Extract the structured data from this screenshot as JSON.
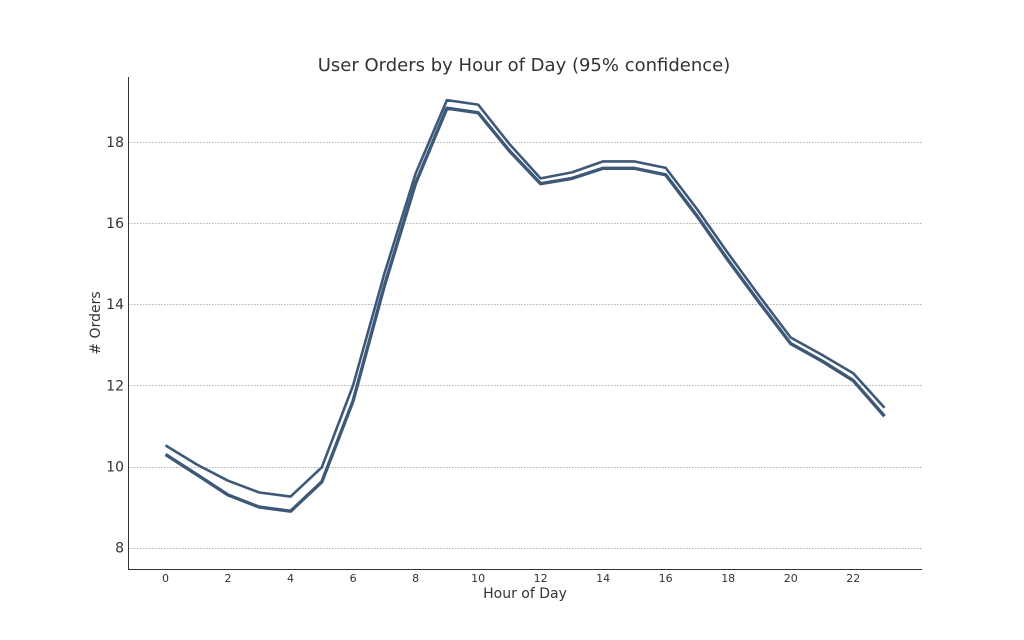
{
  "chart_data": {
    "type": "line",
    "title": "User Orders by Hour of Day (95% confidence)",
    "xlabel": "Hour of Day",
    "ylabel": "# Orders",
    "xlim": [
      -1.2,
      24.2
    ],
    "ylim": [
      7.45,
      19.6
    ],
    "xticks": [
      0,
      2,
      4,
      6,
      8,
      10,
      12,
      14,
      16,
      18,
      20,
      22
    ],
    "yticks": [
      8,
      10,
      12,
      14,
      16,
      18
    ],
    "grid": "y",
    "line_color": "#3e5878",
    "x": [
      0,
      1,
      2,
      3,
      4,
      5,
      6,
      7,
      8,
      9,
      10,
      11,
      12,
      13,
      14,
      15,
      16,
      17,
      18,
      19,
      20,
      21,
      22,
      23
    ],
    "series": [
      {
        "values": [
          10.52,
          10.05,
          9.65,
          9.36,
          9.26,
          9.98,
          12.0,
          14.75,
          17.22,
          19.03,
          18.92,
          17.95,
          17.1,
          17.25,
          17.52,
          17.52,
          17.36,
          16.35,
          15.25,
          14.2,
          13.18,
          12.75,
          12.3,
          11.45
        ]
      },
      {
        "values": [
          10.3,
          9.8,
          9.3,
          9.0,
          8.9,
          9.62,
          11.62,
          14.45,
          16.98,
          18.83,
          18.72,
          17.78,
          16.97,
          17.1,
          17.35,
          17.35,
          17.19,
          16.18,
          15.08,
          14.04,
          13.03,
          12.6,
          12.12,
          11.24
        ]
      }
    ]
  }
}
